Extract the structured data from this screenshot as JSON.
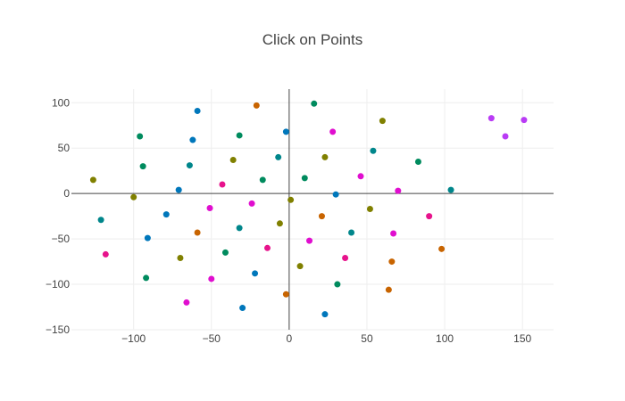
{
  "chart_data": {
    "type": "scatter",
    "title": "Click on Points",
    "xlabel": "",
    "ylabel": "",
    "xlim": [
      -140,
      170
    ],
    "ylim": [
      -150,
      115
    ],
    "x_ticks": [
      -100,
      -50,
      0,
      50,
      100,
      150
    ],
    "x_tick_labels": [
      "−100",
      "−50",
      "0",
      "50",
      "100",
      "150"
    ],
    "y_ticks": [
      -150,
      -100,
      -50,
      0,
      50,
      100
    ],
    "y_tick_labels": [
      "−150",
      "−100",
      "−50",
      "0",
      "50",
      "100"
    ],
    "grid": true,
    "legend": "none",
    "points": [
      {
        "x": -126,
        "y": 15,
        "color": "#808000"
      },
      {
        "x": -121,
        "y": -29,
        "color": "#00868b"
      },
      {
        "x": -118,
        "y": -67,
        "color": "#e7138c"
      },
      {
        "x": -100,
        "y": -4,
        "color": "#808000"
      },
      {
        "x": -96,
        "y": 63,
        "color": "#008b5e"
      },
      {
        "x": -94,
        "y": 30,
        "color": "#008b5e"
      },
      {
        "x": -92,
        "y": -93,
        "color": "#008b5e"
      },
      {
        "x": -91,
        "y": -49,
        "color": "#0077bb"
      },
      {
        "x": -79,
        "y": -23,
        "color": "#0077bb"
      },
      {
        "x": -71,
        "y": 4,
        "color": "#0077bb"
      },
      {
        "x": -70,
        "y": -71,
        "color": "#808000"
      },
      {
        "x": -66,
        "y": -120,
        "color": "#e00ecf"
      },
      {
        "x": -64,
        "y": 31,
        "color": "#00868b"
      },
      {
        "x": -62,
        "y": 59,
        "color": "#0077bb"
      },
      {
        "x": -59,
        "y": 91,
        "color": "#0077bb"
      },
      {
        "x": -59,
        "y": -43,
        "color": "#c86400"
      },
      {
        "x": -51,
        "y": -16,
        "color": "#e00ecf"
      },
      {
        "x": -50,
        "y": -94,
        "color": "#e00ecf"
      },
      {
        "x": -43,
        "y": 10,
        "color": "#e7138c"
      },
      {
        "x": -41,
        "y": -65,
        "color": "#008b5e"
      },
      {
        "x": -36,
        "y": 37,
        "color": "#808000"
      },
      {
        "x": -32,
        "y": 64,
        "color": "#008b5e"
      },
      {
        "x": -32,
        "y": -38,
        "color": "#00868b"
      },
      {
        "x": -30,
        "y": -126,
        "color": "#0077bb"
      },
      {
        "x": -24,
        "y": -11,
        "color": "#e00ecf"
      },
      {
        "x": -22,
        "y": -88,
        "color": "#0077bb"
      },
      {
        "x": -21,
        "y": 97,
        "color": "#c86400"
      },
      {
        "x": -17,
        "y": 15,
        "color": "#008b5e"
      },
      {
        "x": -14,
        "y": -60,
        "color": "#e7138c"
      },
      {
        "x": -7,
        "y": 40,
        "color": "#00868b"
      },
      {
        "x": -6,
        "y": -33,
        "color": "#808000"
      },
      {
        "x": -2,
        "y": 68,
        "color": "#0077bb"
      },
      {
        "x": -2,
        "y": -111,
        "color": "#c86400"
      },
      {
        "x": 1,
        "y": -7,
        "color": "#808000"
      },
      {
        "x": 7,
        "y": -80,
        "color": "#808000"
      },
      {
        "x": 10,
        "y": 17,
        "color": "#008b5e"
      },
      {
        "x": 13,
        "y": -52,
        "color": "#e00ecf"
      },
      {
        "x": 16,
        "y": 99,
        "color": "#008b5e"
      },
      {
        "x": 21,
        "y": -25,
        "color": "#c86400"
      },
      {
        "x": 23,
        "y": 40,
        "color": "#808000"
      },
      {
        "x": 23,
        "y": -133,
        "color": "#0077bb"
      },
      {
        "x": 28,
        "y": 68,
        "color": "#e00ecf"
      },
      {
        "x": 30,
        "y": -1,
        "color": "#0077bb"
      },
      {
        "x": 31,
        "y": -100,
        "color": "#008b5e"
      },
      {
        "x": 36,
        "y": -71,
        "color": "#e7138c"
      },
      {
        "x": 40,
        "y": -43,
        "color": "#00868b"
      },
      {
        "x": 46,
        "y": 19,
        "color": "#e00ecf"
      },
      {
        "x": 52,
        "y": -17,
        "color": "#808000"
      },
      {
        "x": 54,
        "y": 47,
        "color": "#00868b"
      },
      {
        "x": 60,
        "y": 80,
        "color": "#808000"
      },
      {
        "x": 64,
        "y": -106,
        "color": "#c86400"
      },
      {
        "x": 66,
        "y": -75,
        "color": "#c86400"
      },
      {
        "x": 67,
        "y": -44,
        "color": "#e00ecf"
      },
      {
        "x": 70,
        "y": 3,
        "color": "#e00ecf"
      },
      {
        "x": 83,
        "y": 35,
        "color": "#008b5e"
      },
      {
        "x": 90,
        "y": -25,
        "color": "#e7138c"
      },
      {
        "x": 98,
        "y": -61,
        "color": "#c86400"
      },
      {
        "x": 104,
        "y": 4,
        "color": "#00868b"
      },
      {
        "x": 130,
        "y": 83,
        "color": "#b93bf5"
      },
      {
        "x": 139,
        "y": 63,
        "color": "#b93bf5"
      },
      {
        "x": 151,
        "y": 81,
        "color": "#b93bf5"
      }
    ]
  }
}
